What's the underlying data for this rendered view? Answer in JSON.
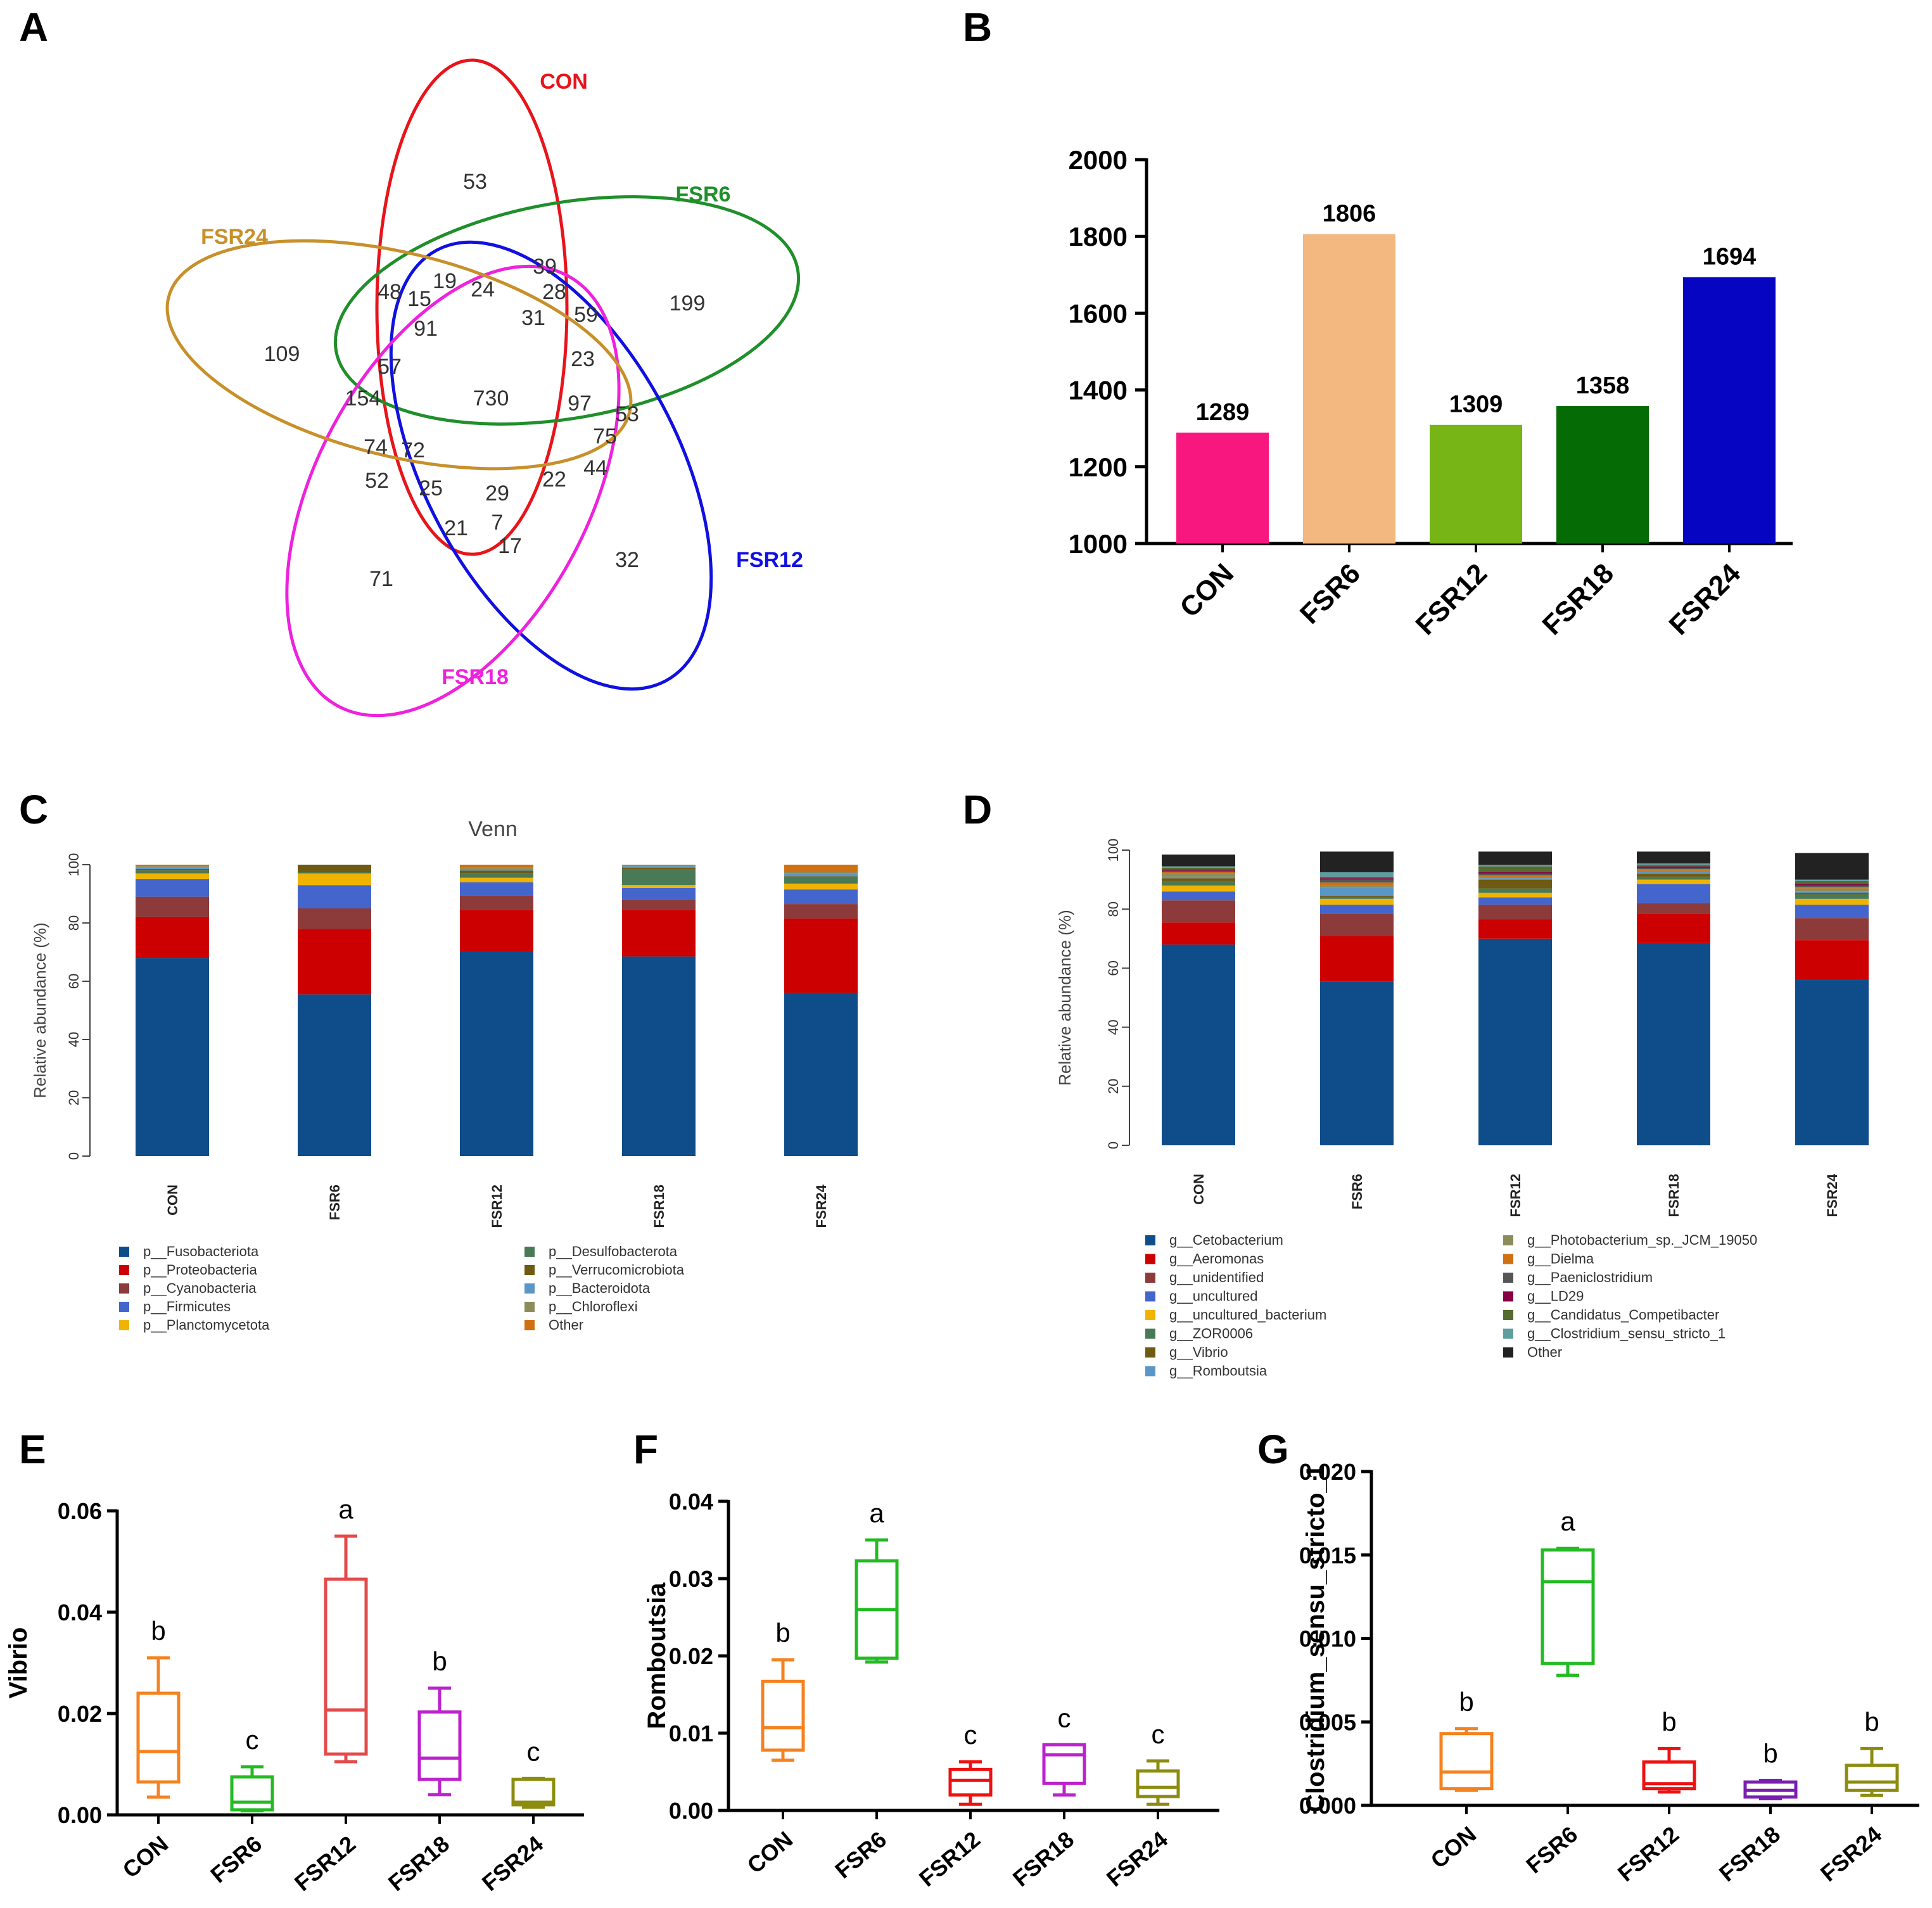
{
  "panel_labels": [
    "A",
    "B",
    "C",
    "D",
    "E",
    "F",
    "G"
  ],
  "chart_data": [
    {
      "panel": "A",
      "type": "venn",
      "sets": [
        {
          "name": "CON",
          "color": "#e8141b"
        },
        {
          "name": "FSR6",
          "color": "#1f8f2a"
        },
        {
          "name": "FSR12",
          "color": "#1010e0"
        },
        {
          "name": "FSR18",
          "color": "#ee22dd"
        },
        {
          "name": "FSR24",
          "color": "#c8902a"
        }
      ],
      "region_values": [
        "53",
        "199",
        "32",
        "71",
        "109",
        "39",
        "28",
        "59",
        "23",
        "53",
        "75",
        "44",
        "22",
        "29",
        "7",
        "17",
        "21",
        "25",
        "52",
        "74",
        "72",
        "154",
        "57",
        "91",
        "48",
        "15",
        "19",
        "24",
        "31",
        "97",
        "730"
      ]
    },
    {
      "panel": "B",
      "type": "bar",
      "categories": [
        "CON",
        "FSR6",
        "FSR12",
        "FSR18",
        "FSR24"
      ],
      "values": [
        1289,
        1806,
        1309,
        1358,
        1694
      ],
      "data_labels": [
        "1289",
        "1806",
        "1309",
        "1358",
        "1694"
      ],
      "colors": [
        "#f7177f",
        "#f2b880",
        "#76b515",
        "#046b05",
        "#0606c2"
      ],
      "ylim": [
        1000,
        2000
      ],
      "yticks": [
        "1000",
        "1200",
        "1400",
        "1600",
        "1800",
        "2000"
      ]
    },
    {
      "panel": "C",
      "type": "stacked_bar",
      "title": "Venn",
      "ylabel": "Relative abundance (%)",
      "ylim": [
        0,
        100
      ],
      "yticks": [
        "0",
        "20",
        "40",
        "60",
        "80",
        "100"
      ],
      "categories": [
        "CON",
        "FSR6",
        "FSR12",
        "FSR18",
        "FSR24"
      ],
      "series": [
        {
          "name": "p__Fusobacteriota",
          "color": "#0f4c8a",
          "values": [
            68,
            55.5,
            70,
            68.5,
            56
          ]
        },
        {
          "name": "p__Proteobacteria",
          "color": "#cc0000",
          "values": [
            14,
            22.5,
            14.5,
            16,
            25.5
          ]
        },
        {
          "name": "p__Cyanobacteria",
          "color": "#8c3a3a",
          "values": [
            7,
            7,
            5,
            3.5,
            5
          ]
        },
        {
          "name": "p__Firmicutes",
          "color": "#4466cc",
          "values": [
            6,
            8,
            4.5,
            4,
            5
          ]
        },
        {
          "name": "p__Planctomycetota",
          "color": "#f0b400",
          "values": [
            2,
            4,
            1.5,
            1,
            2
          ]
        },
        {
          "name": "p__Desulfobacterota",
          "color": "#4a7a55",
          "values": [
            1,
            0.5,
            1.5,
            5.5,
            2
          ]
        },
        {
          "name": "p__Verrucomicrobiota",
          "color": "#6e5a10",
          "values": [
            0.5,
            2.5,
            1,
            0.5,
            0.5
          ]
        },
        {
          "name": "p__Bacteroidota",
          "color": "#5a96c8",
          "values": [
            0.5,
            0,
            0.5,
            0.5,
            1
          ]
        },
        {
          "name": "p__Chloroflexi",
          "color": "#8c8c5a",
          "values": [
            0.5,
            0,
            0.5,
            0.5,
            0.5
          ]
        },
        {
          "name": "Other",
          "color": "#d07010",
          "values": [
            0.5,
            0,
            1,
            0,
            2.5
          ]
        }
      ],
      "legend_columns": 2
    },
    {
      "panel": "D",
      "type": "stacked_bar",
      "ylabel": "Relative abundance (%)",
      "ylim": [
        0,
        100
      ],
      "yticks": [
        "0",
        "20",
        "40",
        "60",
        "80",
        "100"
      ],
      "categories": [
        "CON",
        "FSR6",
        "FSR12",
        "FSR18",
        "FSR24"
      ],
      "series": [
        {
          "name": "g__Cetobacterium",
          "color": "#0f4c8a",
          "values": [
            68,
            55.5,
            70,
            68.5,
            56
          ]
        },
        {
          "name": "g__Aeromonas",
          "color": "#cc0000",
          "values": [
            7.5,
            15.5,
            6.5,
            10,
            13.5
          ]
        },
        {
          "name": "g__unidentified",
          "color": "#8c3a3a",
          "values": [
            7.5,
            7.5,
            5,
            3.5,
            7.5
          ]
        },
        {
          "name": "g__uncultured",
          "color": "#4466cc",
          "values": [
            3,
            3,
            2.5,
            6.5,
            4.5
          ]
        },
        {
          "name": "g__uncultured_bacterium",
          "color": "#f0b400",
          "values": [
            2,
            2,
            1.5,
            1.5,
            2
          ]
        },
        {
          "name": "g__ZOR0006",
          "color": "#4a7a55",
          "values": [
            1.5,
            0.5,
            1.5,
            1,
            1.5
          ]
        },
        {
          "name": "g__Vibrio",
          "color": "#6e5a10",
          "values": [
            1,
            0.5,
            3,
            1,
            0.5
          ]
        },
        {
          "name": "g__Romboutsia",
          "color": "#5a96c8",
          "values": [
            0.5,
            3,
            0.5,
            0.5,
            0.5
          ]
        },
        {
          "name": "g__Photobacterium_sp._JCM_19050",
          "color": "#8c8c5a",
          "values": [
            1,
            0.5,
            0.5,
            0.5,
            1
          ]
        },
        {
          "name": "g__Dielma",
          "color": "#d07010",
          "values": [
            0.5,
            1,
            0.5,
            0.5,
            0.5
          ]
        },
        {
          "name": "g__Paeniclostridium",
          "color": "#555555",
          "values": [
            0.5,
            1,
            0.5,
            0.5,
            0.5
          ]
        },
        {
          "name": "g__LD29",
          "color": "#880044",
          "values": [
            0.5,
            0.5,
            0.5,
            0.5,
            0.5
          ]
        },
        {
          "name": "g__Candidatus_Competibacter",
          "color": "#556b2f",
          "values": [
            0.5,
            0.5,
            2,
            0.5,
            1
          ]
        },
        {
          "name": "g__Clostridium_sensu_stricto_1",
          "color": "#5f9ea0",
          "values": [
            0.5,
            1.5,
            0.5,
            0.5,
            0.5
          ]
        },
        {
          "name": "Other",
          "color": "#222222",
          "values": [
            4,
            7,
            4.5,
            4,
            9
          ]
        }
      ],
      "legend_columns": 2
    },
    {
      "panel": "E",
      "type": "boxplot",
      "ylabel": "Vibrio",
      "ylim": [
        0,
        0.06
      ],
      "yticks": [
        "0.00",
        "0.02",
        "0.04",
        "0.06"
      ],
      "categories": [
        "CON",
        "FSR6",
        "FSR12",
        "FSR18",
        "FSR24"
      ],
      "colors": [
        "#f58220",
        "#22bb22",
        "#e34a4a",
        "#bb22cc",
        "#8c8c10"
      ],
      "boxes": [
        {
          "min": 0.0035,
          "q1": 0.0065,
          "median": 0.0125,
          "q3": 0.024,
          "max": 0.031
        },
        {
          "min": 0.0008,
          "q1": 0.001,
          "median": 0.0025,
          "q3": 0.0075,
          "max": 0.0095
        },
        {
          "min": 0.0105,
          "q1": 0.012,
          "median": 0.0207,
          "q3": 0.0465,
          "max": 0.055
        },
        {
          "min": 0.004,
          "q1": 0.007,
          "median": 0.0112,
          "q3": 0.0203,
          "max": 0.025
        },
        {
          "min": 0.0015,
          "q1": 0.002,
          "median": 0.0025,
          "q3": 0.007,
          "max": 0.0072
        }
      ],
      "sig_letters": [
        "b",
        "c",
        "a",
        "b",
        "c"
      ]
    },
    {
      "panel": "F",
      "type": "boxplot",
      "ylabel": "Romboutsia",
      "ylim": [
        0,
        0.04
      ],
      "yticks": [
        "0.00",
        "0.01",
        "0.02",
        "0.03",
        "0.04"
      ],
      "categories": [
        "CON",
        "FSR6",
        "FSR12",
        "FSR18",
        "FSR24"
      ],
      "colors": [
        "#f58220",
        "#22bb22",
        "#ee1111",
        "#bb22cc",
        "#8c8c10"
      ],
      "boxes": [
        {
          "min": 0.0065,
          "q1": 0.0078,
          "median": 0.0107,
          "q3": 0.0167,
          "max": 0.0195
        },
        {
          "min": 0.0192,
          "q1": 0.0197,
          "median": 0.026,
          "q3": 0.0323,
          "max": 0.035
        },
        {
          "min": 0.0008,
          "q1": 0.002,
          "median": 0.0039,
          "q3": 0.0053,
          "max": 0.0063
        },
        {
          "min": 0.002,
          "q1": 0.0035,
          "median": 0.0072,
          "q3": 0.0085,
          "max": 0.0085
        },
        {
          "min": 0.0008,
          "q1": 0.0018,
          "median": 0.003,
          "q3": 0.0051,
          "max": 0.0064
        }
      ],
      "sig_letters": [
        "b",
        "a",
        "c",
        "c",
        "c"
      ]
    },
    {
      "panel": "G",
      "type": "boxplot",
      "ylabel": "Clostridium_sensu_stricto_1",
      "ylim": [
        0,
        0.02
      ],
      "yticks": [
        "0.000",
        "0.005",
        "0.010",
        "0.015",
        "0.020"
      ],
      "categories": [
        "CON",
        "FSR6",
        "FSR12",
        "FSR18",
        "FSR24"
      ],
      "colors": [
        "#f58220",
        "#22bb22",
        "#ee1111",
        "#7a1fb0",
        "#8c8c10"
      ],
      "boxes": [
        {
          "min": 0.0009,
          "q1": 0.001,
          "median": 0.002,
          "q3": 0.0043,
          "max": 0.0046
        },
        {
          "min": 0.0078,
          "q1": 0.0085,
          "median": 0.0134,
          "q3": 0.0153,
          "max": 0.0154
        },
        {
          "min": 0.0008,
          "q1": 0.001,
          "median": 0.0013,
          "q3": 0.0026,
          "max": 0.0034
        },
        {
          "min": 0.0004,
          "q1": 0.0005,
          "median": 0.0009,
          "q3": 0.0014,
          "max": 0.0015
        },
        {
          "min": 0.0006,
          "q1": 0.0009,
          "median": 0.0014,
          "q3": 0.0024,
          "max": 0.0034
        }
      ],
      "sig_letters": [
        "b",
        "a",
        "b",
        "b",
        "b"
      ]
    }
  ]
}
